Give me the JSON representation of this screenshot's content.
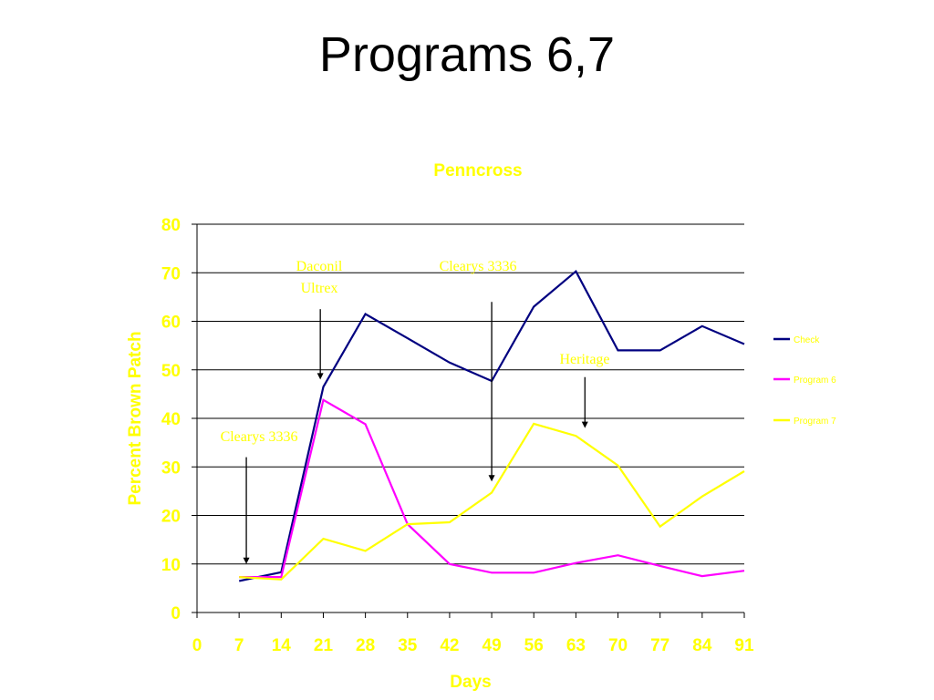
{
  "slide": {
    "title": "Programs 6,7"
  },
  "colors": {
    "title_yellow": "#ffff00",
    "check": "#000080",
    "program6": "#ff00ff",
    "program7": "#ffff00",
    "grid": "#000000",
    "arrow": "#000000"
  },
  "chart_data": {
    "type": "line",
    "title": "Penncross",
    "xlabel": "Days",
    "ylabel": "Percent Brown Patch",
    "xlim": [
      0,
      91
    ],
    "ylim": [
      0,
      80
    ],
    "x_ticks": [
      "0",
      "7",
      "14",
      "21",
      "28",
      "35",
      "42",
      "49",
      "56",
      "63",
      "70",
      "77",
      "84",
      "91"
    ],
    "y_ticks": [
      "0",
      "10",
      "20",
      "30",
      "40",
      "50",
      "60",
      "70",
      "80"
    ],
    "grid": "horizontal",
    "legend_position": "right",
    "series": [
      {
        "name": "Check",
        "color_key": "check",
        "points": [
          [
            7,
            6.5
          ],
          [
            14,
            8.3
          ],
          [
            21,
            46.5
          ],
          [
            28,
            61.5
          ],
          [
            35,
            56.5
          ],
          [
            42,
            51.5
          ],
          [
            49,
            47.7
          ],
          [
            56,
            63
          ],
          [
            63,
            70.3
          ],
          [
            70,
            54
          ],
          [
            77,
            54
          ],
          [
            84,
            59
          ],
          [
            91,
            55.3
          ]
        ]
      },
      {
        "name": "Program 6",
        "color_key": "program6",
        "points": [
          [
            7,
            7.3
          ],
          [
            14,
            7.3
          ],
          [
            21,
            43.8
          ],
          [
            28,
            38.8
          ],
          [
            35,
            18.2
          ],
          [
            42,
            10
          ],
          [
            49,
            8.2
          ],
          [
            56,
            8.2
          ],
          [
            63,
            10.2
          ],
          [
            70,
            11.8
          ],
          [
            77,
            9.6
          ],
          [
            84,
            7.5
          ],
          [
            91,
            8.6
          ]
        ]
      },
      {
        "name": "Program 7",
        "color_key": "program7",
        "points": [
          [
            7,
            7.3
          ],
          [
            14,
            6.8
          ],
          [
            21,
            15.2
          ],
          [
            28,
            12.7
          ],
          [
            35,
            18.2
          ],
          [
            42,
            18.6
          ],
          [
            49,
            24.7
          ],
          [
            56,
            38.9
          ],
          [
            63,
            36.4
          ],
          [
            70,
            30.3
          ],
          [
            77,
            17.7
          ],
          [
            84,
            23.9
          ],
          [
            91,
            29.1
          ]
        ]
      }
    ],
    "annotations": [
      {
        "lines": [
          "Clearys 3336"
        ],
        "color": "#ffff00",
        "arrow_day": 8.2,
        "arrow_from": 32,
        "arrow_to": 10
      },
      {
        "lines": [
          "Daconil",
          "Ultrex"
        ],
        "color": "#ffff00",
        "arrow_day": 20.5,
        "arrow_from": 62.5,
        "arrow_to": 48
      },
      {
        "lines": [
          "Clearys 3336"
        ],
        "color": "#ffff00",
        "arrow_day": 49,
        "arrow_from": 64,
        "arrow_to": 27
      },
      {
        "lines": [
          "Heritage"
        ],
        "color": "#ffff00",
        "arrow_day": 64.5,
        "arrow_from": 48.5,
        "arrow_to": 38
      }
    ]
  }
}
